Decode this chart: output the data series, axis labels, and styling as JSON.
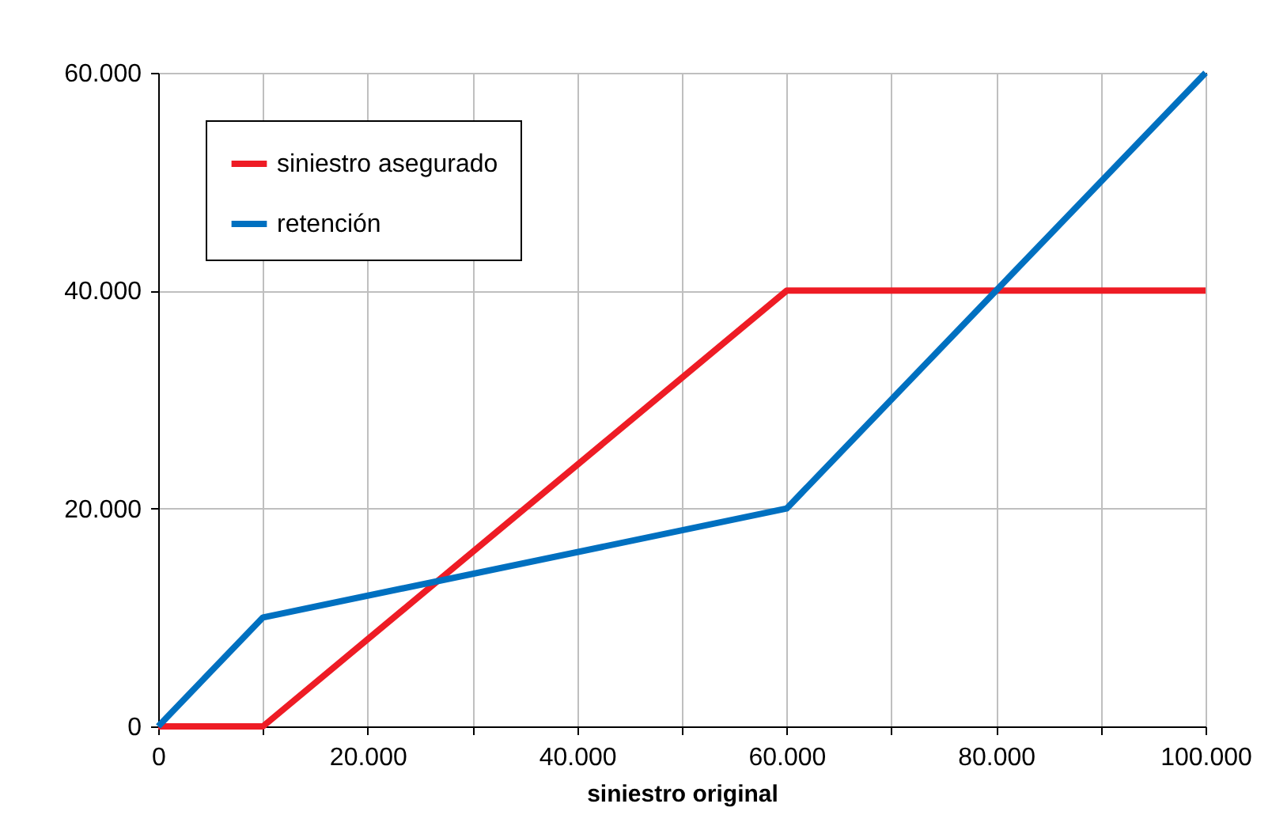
{
  "chart_data": {
    "type": "line",
    "xlabel": "siniestro original",
    "xlim": [
      0,
      100000
    ],
    "ylim": [
      0,
      60000
    ],
    "xticks": [
      {
        "value": 0,
        "label": "0"
      },
      {
        "value": 10000,
        "label": null
      },
      {
        "value": 20000,
        "label": "20.000"
      },
      {
        "value": 30000,
        "label": null
      },
      {
        "value": 40000,
        "label": "40.000"
      },
      {
        "value": 50000,
        "label": null
      },
      {
        "value": 60000,
        "label": "60.000"
      },
      {
        "value": 70000,
        "label": null
      },
      {
        "value": 80000,
        "label": "80.000"
      },
      {
        "value": 90000,
        "label": null
      },
      {
        "value": 100000,
        "label": "100.000"
      }
    ],
    "yticks": [
      {
        "value": 0,
        "label": "0"
      },
      {
        "value": 20000,
        "label": "20.000"
      },
      {
        "value": 40000,
        "label": "40.000"
      },
      {
        "value": 60000,
        "label": "60.000"
      }
    ],
    "grid": true,
    "legend": "top left",
    "marker": "none",
    "line_style": "solid",
    "series": [
      {
        "name": "siniestro asegurado",
        "color": "#ee1c25",
        "x": [
          0,
          10000,
          60000,
          100000
        ],
        "values": [
          0,
          0,
          40000,
          40000
        ]
      },
      {
        "name": "retención",
        "color": "#0070c0",
        "x": [
          0,
          10000,
          60000,
          100000
        ],
        "values": [
          0,
          10000,
          20000,
          60000
        ]
      }
    ]
  }
}
